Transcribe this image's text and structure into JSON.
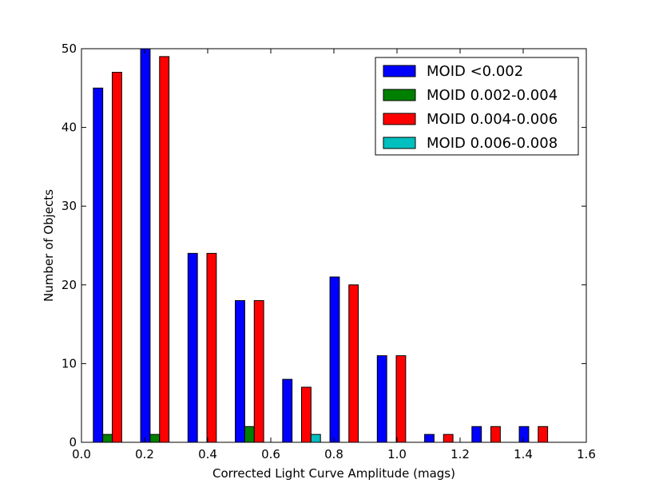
{
  "chart_data": {
    "type": "bar",
    "title": "",
    "xlabel": "Corrected Light Curve Amplitude (mags)",
    "ylabel": "Number of Objects",
    "xlim": [
      0.0,
      1.6
    ],
    "ylim": [
      0,
      50
    ],
    "xticks": [
      0.0,
      0.2,
      0.4,
      0.6,
      0.8,
      1.0,
      1.2,
      1.4,
      1.6
    ],
    "xtick_labels": [
      "0.0",
      "0.2",
      "0.4",
      "0.6",
      "0.8",
      "1.0",
      "1.2",
      "1.4",
      "1.6"
    ],
    "yticks": [
      0,
      10,
      20,
      30,
      40,
      50
    ],
    "ytick_labels": [
      "0",
      "10",
      "20",
      "30",
      "40",
      "50"
    ],
    "grid": false,
    "legend_position": "top-right",
    "bin_edges": [
      0.0375,
      0.1875,
      0.3375,
      0.4875,
      0.6375,
      0.7875,
      0.9375,
      1.0875,
      1.2375,
      1.3875,
      1.5375
    ],
    "series": [
      {
        "name": "MOID <0.002",
        "color": "#0000ff",
        "values": [
          45,
          50,
          24,
          18,
          8,
          21,
          11,
          1,
          2,
          2
        ]
      },
      {
        "name": "MOID 0.002-0.004",
        "color": "#008000",
        "values": [
          1,
          1,
          0,
          2,
          0,
          0,
          0,
          0,
          0,
          0
        ]
      },
      {
        "name": "MOID 0.004-0.006",
        "color": "#ff0000",
        "values": [
          47,
          49,
          24,
          18,
          7,
          20,
          11,
          1,
          2,
          2
        ]
      },
      {
        "name": "MOID 0.006-0.008",
        "color": "#00bfbf",
        "values": [
          0,
          0,
          0,
          0,
          1,
          0,
          0,
          0,
          0,
          0
        ]
      }
    ]
  }
}
